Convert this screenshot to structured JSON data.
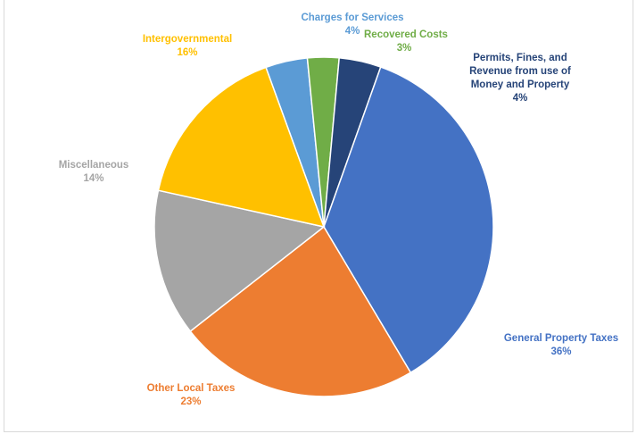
{
  "chart_data": {
    "type": "pie",
    "title": "",
    "start_angle_deg": -20,
    "slices": [
      {
        "label": "Charges for Services",
        "percent_label": "4%",
        "value": 4,
        "color": "#5b9bd5"
      },
      {
        "label": "Recovered Costs",
        "percent_label": "3%",
        "value": 3,
        "color": "#70ad47"
      },
      {
        "label": "Permits, Fines, and Revenue from use of Money and Property",
        "percent_label": "4%",
        "value": 4,
        "color": "#264478"
      },
      {
        "label": "General Property Taxes",
        "percent_label": "36%",
        "value": 36,
        "color": "#4472c4"
      },
      {
        "label": "Other Local Taxes",
        "percent_label": "23%",
        "value": 23,
        "color": "#ed7d31"
      },
      {
        "label": "Miscellaneous",
        "percent_label": "14%",
        "value": 14,
        "color": "#a5a5a5"
      },
      {
        "label": "Intergovernmental",
        "percent_label": "16%",
        "value": 16,
        "color": "#ffc000"
      }
    ]
  }
}
